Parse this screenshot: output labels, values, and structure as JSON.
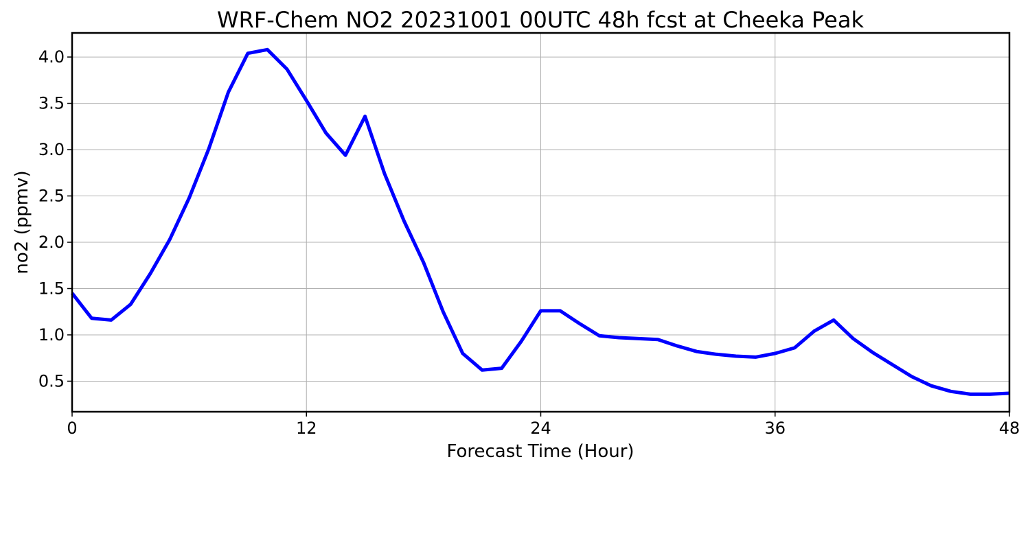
{
  "chart_data": {
    "type": "line",
    "title": "WRF-Chem NO2  20231001 00UTC 48h fcst at Cheeka Peak",
    "xlabel": "Forecast Time (Hour)",
    "ylabel": "no2  (ppmv)",
    "xlim": [
      0,
      48
    ],
    "ylim": [
      0.17,
      4.26
    ],
    "xticks": [
      0,
      12,
      24,
      36,
      48
    ],
    "yticks": [
      0.5,
      1.0,
      1.5,
      2.0,
      2.5,
      3.0,
      3.5,
      4.0
    ],
    "ytick_labels": [
      "0.5",
      "1.0",
      "1.5",
      "2.0",
      "2.5",
      "3.0",
      "3.5",
      "4.0"
    ],
    "grid": true,
    "series": [
      {
        "color": "#0000ff",
        "x": [
          0,
          1,
          2,
          3,
          4,
          5,
          6,
          7,
          8,
          9,
          10,
          11,
          12,
          13,
          14,
          15,
          16,
          17,
          18,
          19,
          20,
          21,
          22,
          23,
          24,
          25,
          26,
          27,
          28,
          29,
          30,
          31,
          32,
          33,
          34,
          35,
          36,
          37,
          38,
          39,
          40,
          41,
          42,
          43,
          44,
          45,
          46,
          47,
          48
        ],
        "y": [
          1.45,
          1.18,
          1.16,
          1.33,
          1.66,
          2.03,
          2.48,
          3.01,
          3.62,
          4.04,
          4.08,
          3.87,
          3.53,
          3.18,
          2.94,
          3.36,
          2.74,
          2.23,
          1.78,
          1.25,
          0.8,
          0.62,
          0.64,
          0.93,
          1.26,
          1.26,
          1.12,
          0.99,
          0.97,
          0.96,
          0.95,
          0.88,
          0.82,
          0.79,
          0.77,
          0.76,
          0.8,
          0.86,
          1.04,
          1.16,
          0.96,
          0.81,
          0.68,
          0.55,
          0.45,
          0.39,
          0.36,
          0.36,
          0.37
        ]
      }
    ]
  }
}
